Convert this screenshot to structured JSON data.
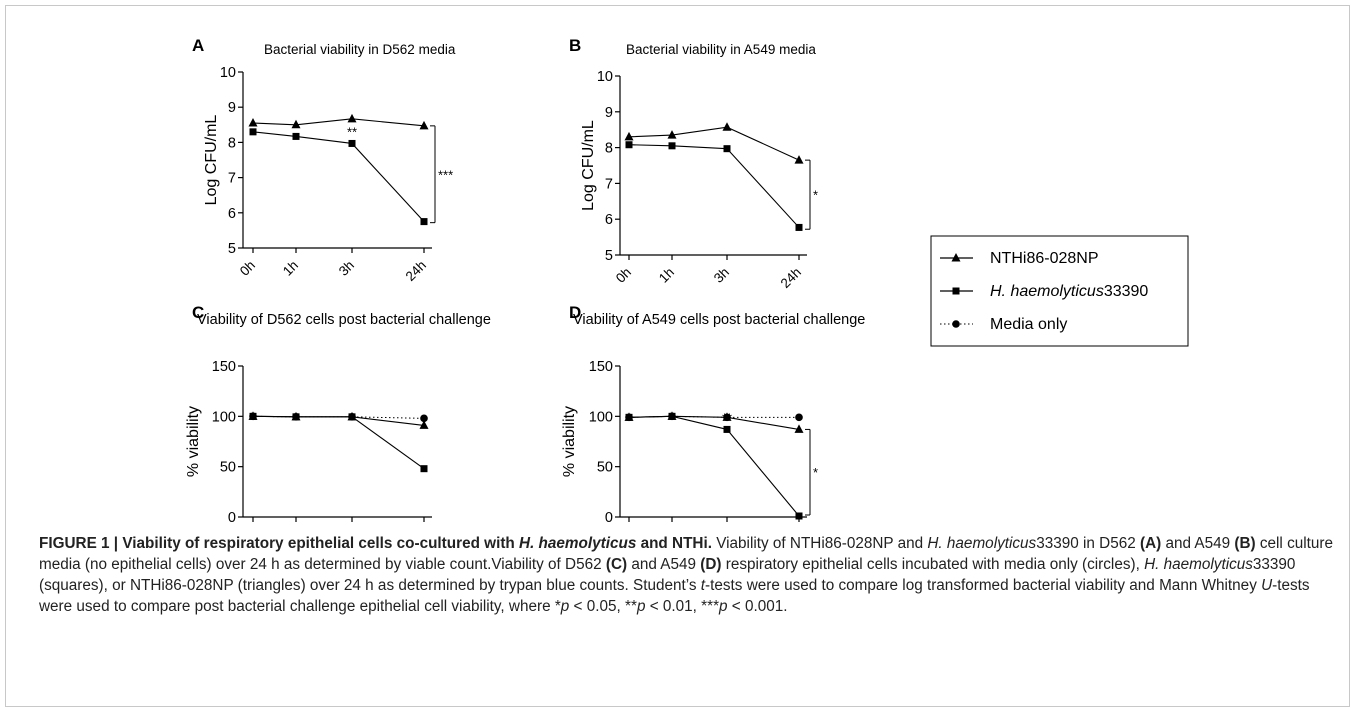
{
  "chart_data": [
    {
      "panel": "A",
      "type": "line",
      "title": "Bacterial viability in D562 media",
      "ylabel": "Log CFU/mL",
      "ylim": [
        5,
        10
      ],
      "yticks": [
        5,
        6,
        7,
        8,
        9,
        10
      ],
      "categories": [
        "0h",
        "1h",
        "3h",
        "24h"
      ],
      "series": [
        {
          "name": "NTHi86-028NP",
          "marker": "triangle",
          "values": [
            8.55,
            8.5,
            8.67,
            8.47
          ]
        },
        {
          "name": "H. haemolyticus33390",
          "marker": "square",
          "values": [
            8.3,
            8.17,
            7.97,
            5.75
          ]
        }
      ],
      "annotations": [
        {
          "text": "**",
          "at": "3h"
        },
        {
          "text": "***",
          "bracket": [
            5.72,
            8.47
          ],
          "at": "24h"
        }
      ]
    },
    {
      "panel": "B",
      "type": "line",
      "title": "Bacterial viability in A549 media",
      "ylabel": "Log CFU/mL",
      "ylim": [
        5,
        10
      ],
      "yticks": [
        5,
        6,
        7,
        8,
        9,
        10
      ],
      "categories": [
        "0h",
        "1h",
        "3h",
        "24h"
      ],
      "series": [
        {
          "name": "NTHi86-028NP",
          "marker": "triangle",
          "values": [
            8.3,
            8.35,
            8.57,
            7.65
          ]
        },
        {
          "name": "H. haemolyticus33390",
          "marker": "square",
          "values": [
            8.08,
            8.05,
            7.97,
            5.77
          ]
        }
      ],
      "annotations": [
        {
          "text": "*",
          "bracket": [
            5.72,
            7.65
          ],
          "at": "24h"
        }
      ]
    },
    {
      "panel": "C",
      "type": "line",
      "title": "Viability of D562 cells post bacterial challenge",
      "ylabel": "% viability",
      "ylim": [
        0,
        150
      ],
      "yticks": [
        0,
        50,
        100,
        150
      ],
      "categories": [
        "0h",
        "1h",
        "3h",
        "24h"
      ],
      "series": [
        {
          "name": "NTHi86-028NP",
          "marker": "triangle",
          "values": [
            100,
            99.5,
            99.5,
            91
          ]
        },
        {
          "name": "H. haemolyticus33390",
          "marker": "square",
          "values": [
            100,
            99.5,
            99.5,
            48
          ]
        },
        {
          "name": "Media only",
          "marker": "circle",
          "dotted": true,
          "values": [
            100,
            99.5,
            99.5,
            98
          ]
        }
      ],
      "annotations": []
    },
    {
      "panel": "D",
      "type": "line",
      "title": "Viability of A549 cells post bacterial challenge",
      "ylabel": "% viability",
      "ylim": [
        0,
        150
      ],
      "yticks": [
        0,
        50,
        100,
        150
      ],
      "categories": [
        "0h",
        "1h",
        "3h",
        "24h"
      ],
      "series": [
        {
          "name": "NTHi86-028NP",
          "marker": "triangle",
          "values": [
            99,
            100,
            99,
            87
          ]
        },
        {
          "name": "H. haemolyticus33390",
          "marker": "square",
          "values": [
            99,
            100,
            87,
            1
          ]
        },
        {
          "name": "Media only",
          "marker": "circle",
          "dotted": true,
          "values": [
            99,
            100,
            99,
            99
          ]
        }
      ],
      "annotations": [
        {
          "text": "**",
          "at": "3h"
        },
        {
          "text": "*",
          "bracket": [
            2,
            87
          ],
          "at": "24h"
        }
      ]
    }
  ],
  "legend": {
    "items": [
      {
        "marker": "triangle",
        "dotted": false,
        "label_parts": [
          {
            "t": "NTHi86-028NP",
            "i": false
          }
        ]
      },
      {
        "marker": "square",
        "dotted": false,
        "label_parts": [
          {
            "t": "H. haemolyticus",
            "i": true
          },
          {
            "t": "33390",
            "i": false
          }
        ]
      },
      {
        "marker": "circle",
        "dotted": true,
        "label_parts": [
          {
            "t": "Media only",
            "i": false
          }
        ]
      }
    ]
  },
  "caption": {
    "runs": [
      {
        "t": "FIGURE 1 | Viability of respiratory epithelial cells co-cultured with ",
        "b": true
      },
      {
        "t": "H. haemolyticus",
        "b": true,
        "i": true
      },
      {
        "t": " and NTHi.",
        "b": true
      },
      {
        "t": " Viability of NTHi86-028NP and "
      },
      {
        "t": "H. haemolyticus",
        "i": true
      },
      {
        "t": "33390 in D562 "
      },
      {
        "t": "(A)",
        "b": true
      },
      {
        "t": " and A549 "
      },
      {
        "t": "(B)",
        "b": true
      },
      {
        "t": " cell culture media (no epithelial cells) over 24 h as determined by viable count.Viability of D562 "
      },
      {
        "t": "(C)",
        "b": true
      },
      {
        "t": " and A549 "
      },
      {
        "t": "(D)",
        "b": true
      },
      {
        "t": " respiratory epithelial cells incubated with media only (circles), "
      },
      {
        "t": "H. haemolyticus",
        "i": true
      },
      {
        "t": "33390 (squares), or NTHi86-028NP (triangles) over 24 h as determined by trypan blue counts. Student’s "
      },
      {
        "t": "t",
        "i": true
      },
      {
        "t": "-tests were used to compare log transformed bacterial viability and Mann Whitney "
      },
      {
        "t": "U",
        "i": true
      },
      {
        "t": "-tests were used to compare post bacterial challenge epithelial cell viability, where *"
      },
      {
        "t": "p",
        "i": true
      },
      {
        "t": " < 0.05, **"
      },
      {
        "t": "p",
        "i": true
      },
      {
        "t": " < 0.01, ***"
      },
      {
        "t": "p",
        "i": true
      },
      {
        "t": " < 0.001."
      }
    ]
  }
}
